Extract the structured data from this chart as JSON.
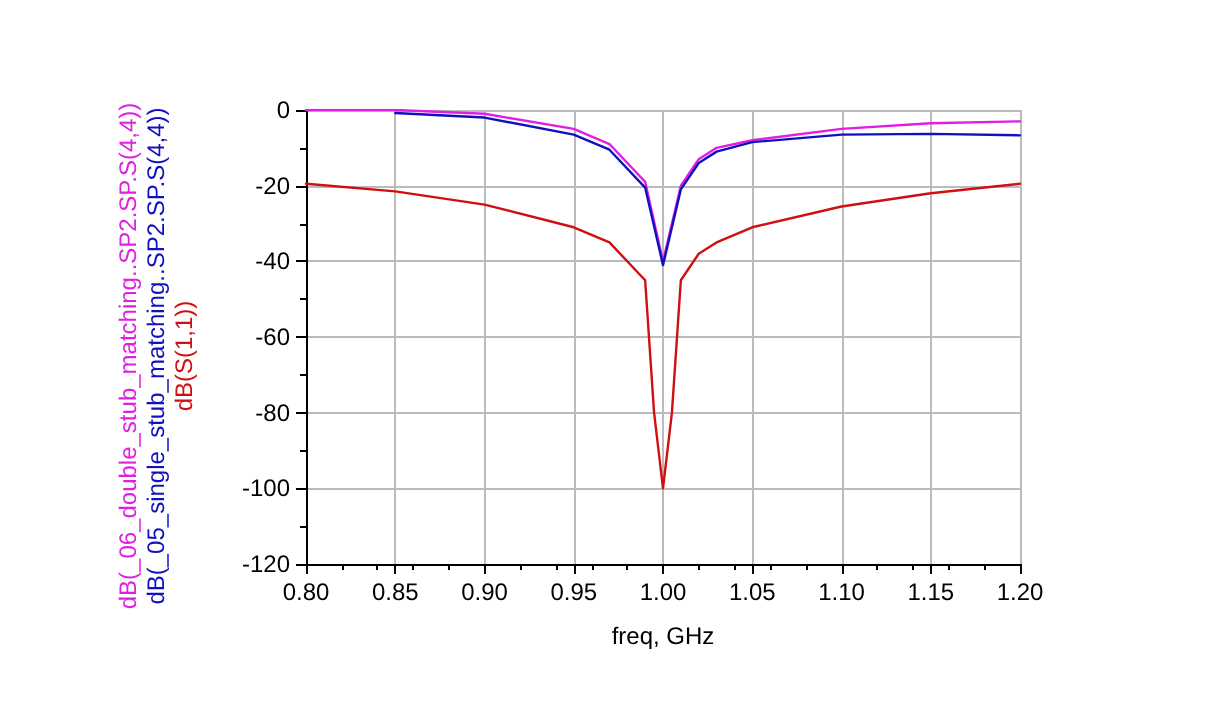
{
  "chart_data": {
    "type": "line",
    "xlabel": "freq, GHz",
    "xlim": [
      0.8,
      1.2
    ],
    "xticks": [
      {
        "value": 0.8,
        "label": "0.80"
      },
      {
        "value": 0.85,
        "label": "0.85"
      },
      {
        "value": 0.9,
        "label": "0.90"
      },
      {
        "value": 0.95,
        "label": "0.95"
      },
      {
        "value": 1.0,
        "label": "1.00"
      },
      {
        "value": 1.05,
        "label": "1.05"
      },
      {
        "value": 1.1,
        "label": "1.10"
      },
      {
        "value": 1.15,
        "label": "1.15"
      },
      {
        "value": 1.2,
        "label": "1.20"
      }
    ],
    "ylim": [
      -120,
      0
    ],
    "yticks": [
      -120,
      -100,
      -80,
      -60,
      -40,
      -20,
      0
    ],
    "grid": true,
    "legend": "left",
    "marker": "none",
    "line_style": "solid",
    "x": [
      0.8,
      0.85,
      0.9,
      0.95,
      0.97,
      0.99,
      1.0,
      1.01,
      1.02,
      1.03,
      1.05,
      1.1,
      1.15,
      1.2
    ],
    "series": [
      {
        "name": "dB(_06_double_stub_matching..SP2.SP.S(4,4))",
        "color": "#e020e0",
        "values": [
          0,
          0,
          -1,
          -5,
          -9,
          -19,
          -40,
          -20,
          -13,
          -10,
          -8,
          -5,
          -3.5,
          -3
        ]
      },
      {
        "name": "dB(_05_single_stub_matching..SP2.SP.S(4,4))",
        "color": "#1010c0",
        "x": [
          0.85,
          0.9,
          0.95,
          0.97,
          0.99,
          1.0,
          1.01,
          1.02,
          1.03,
          1.05,
          1.1,
          1.15,
          1.2
        ],
        "values": [
          -0.8,
          -2,
          -6.5,
          -10.5,
          -20.5,
          -41,
          -21,
          -14,
          -11,
          -8.5,
          -6.5,
          -6.3,
          -6.7
        ]
      },
      {
        "name": "dB(S(1,1))",
        "color": "#d01010",
        "x": [
          0.8,
          0.85,
          0.9,
          0.95,
          0.97,
          0.99,
          0.995,
          1.0,
          1.005,
          1.01,
          1.02,
          1.03,
          1.05,
          1.1,
          1.15,
          1.2
        ],
        "values": [
          -19.5,
          -21.5,
          -25,
          -31,
          -35,
          -45,
          -80,
          -100,
          -80,
          -45,
          -38,
          -35,
          -31,
          -25.5,
          -22,
          -19.5
        ]
      }
    ]
  }
}
